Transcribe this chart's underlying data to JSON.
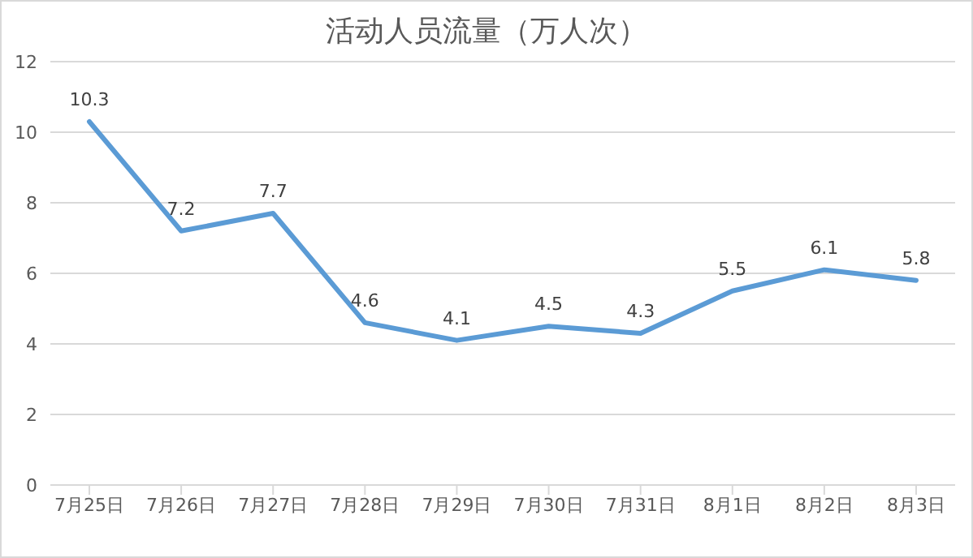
{
  "chart_data": {
    "type": "line",
    "title": "活动人员流量（万人次）",
    "categories": [
      "7月25日",
      "7月26日",
      "7月27日",
      "7月28日",
      "7月29日",
      "7月30日",
      "7月31日",
      "8月1日",
      "8月2日",
      "8月3日"
    ],
    "series": [
      {
        "color": "#5b9bd5",
        "values": [
          10.3,
          7.2,
          7.7,
          4.6,
          4.1,
          4.5,
          4.3,
          5.5,
          6.1,
          5.8
        ]
      }
    ],
    "ylim": [
      0,
      12
    ],
    "yticks": [
      0,
      2,
      4,
      6,
      8,
      10,
      12
    ],
    "grid": "y",
    "data_labels": true,
    "marker": "none",
    "line_style": "solid",
    "legend": false
  }
}
